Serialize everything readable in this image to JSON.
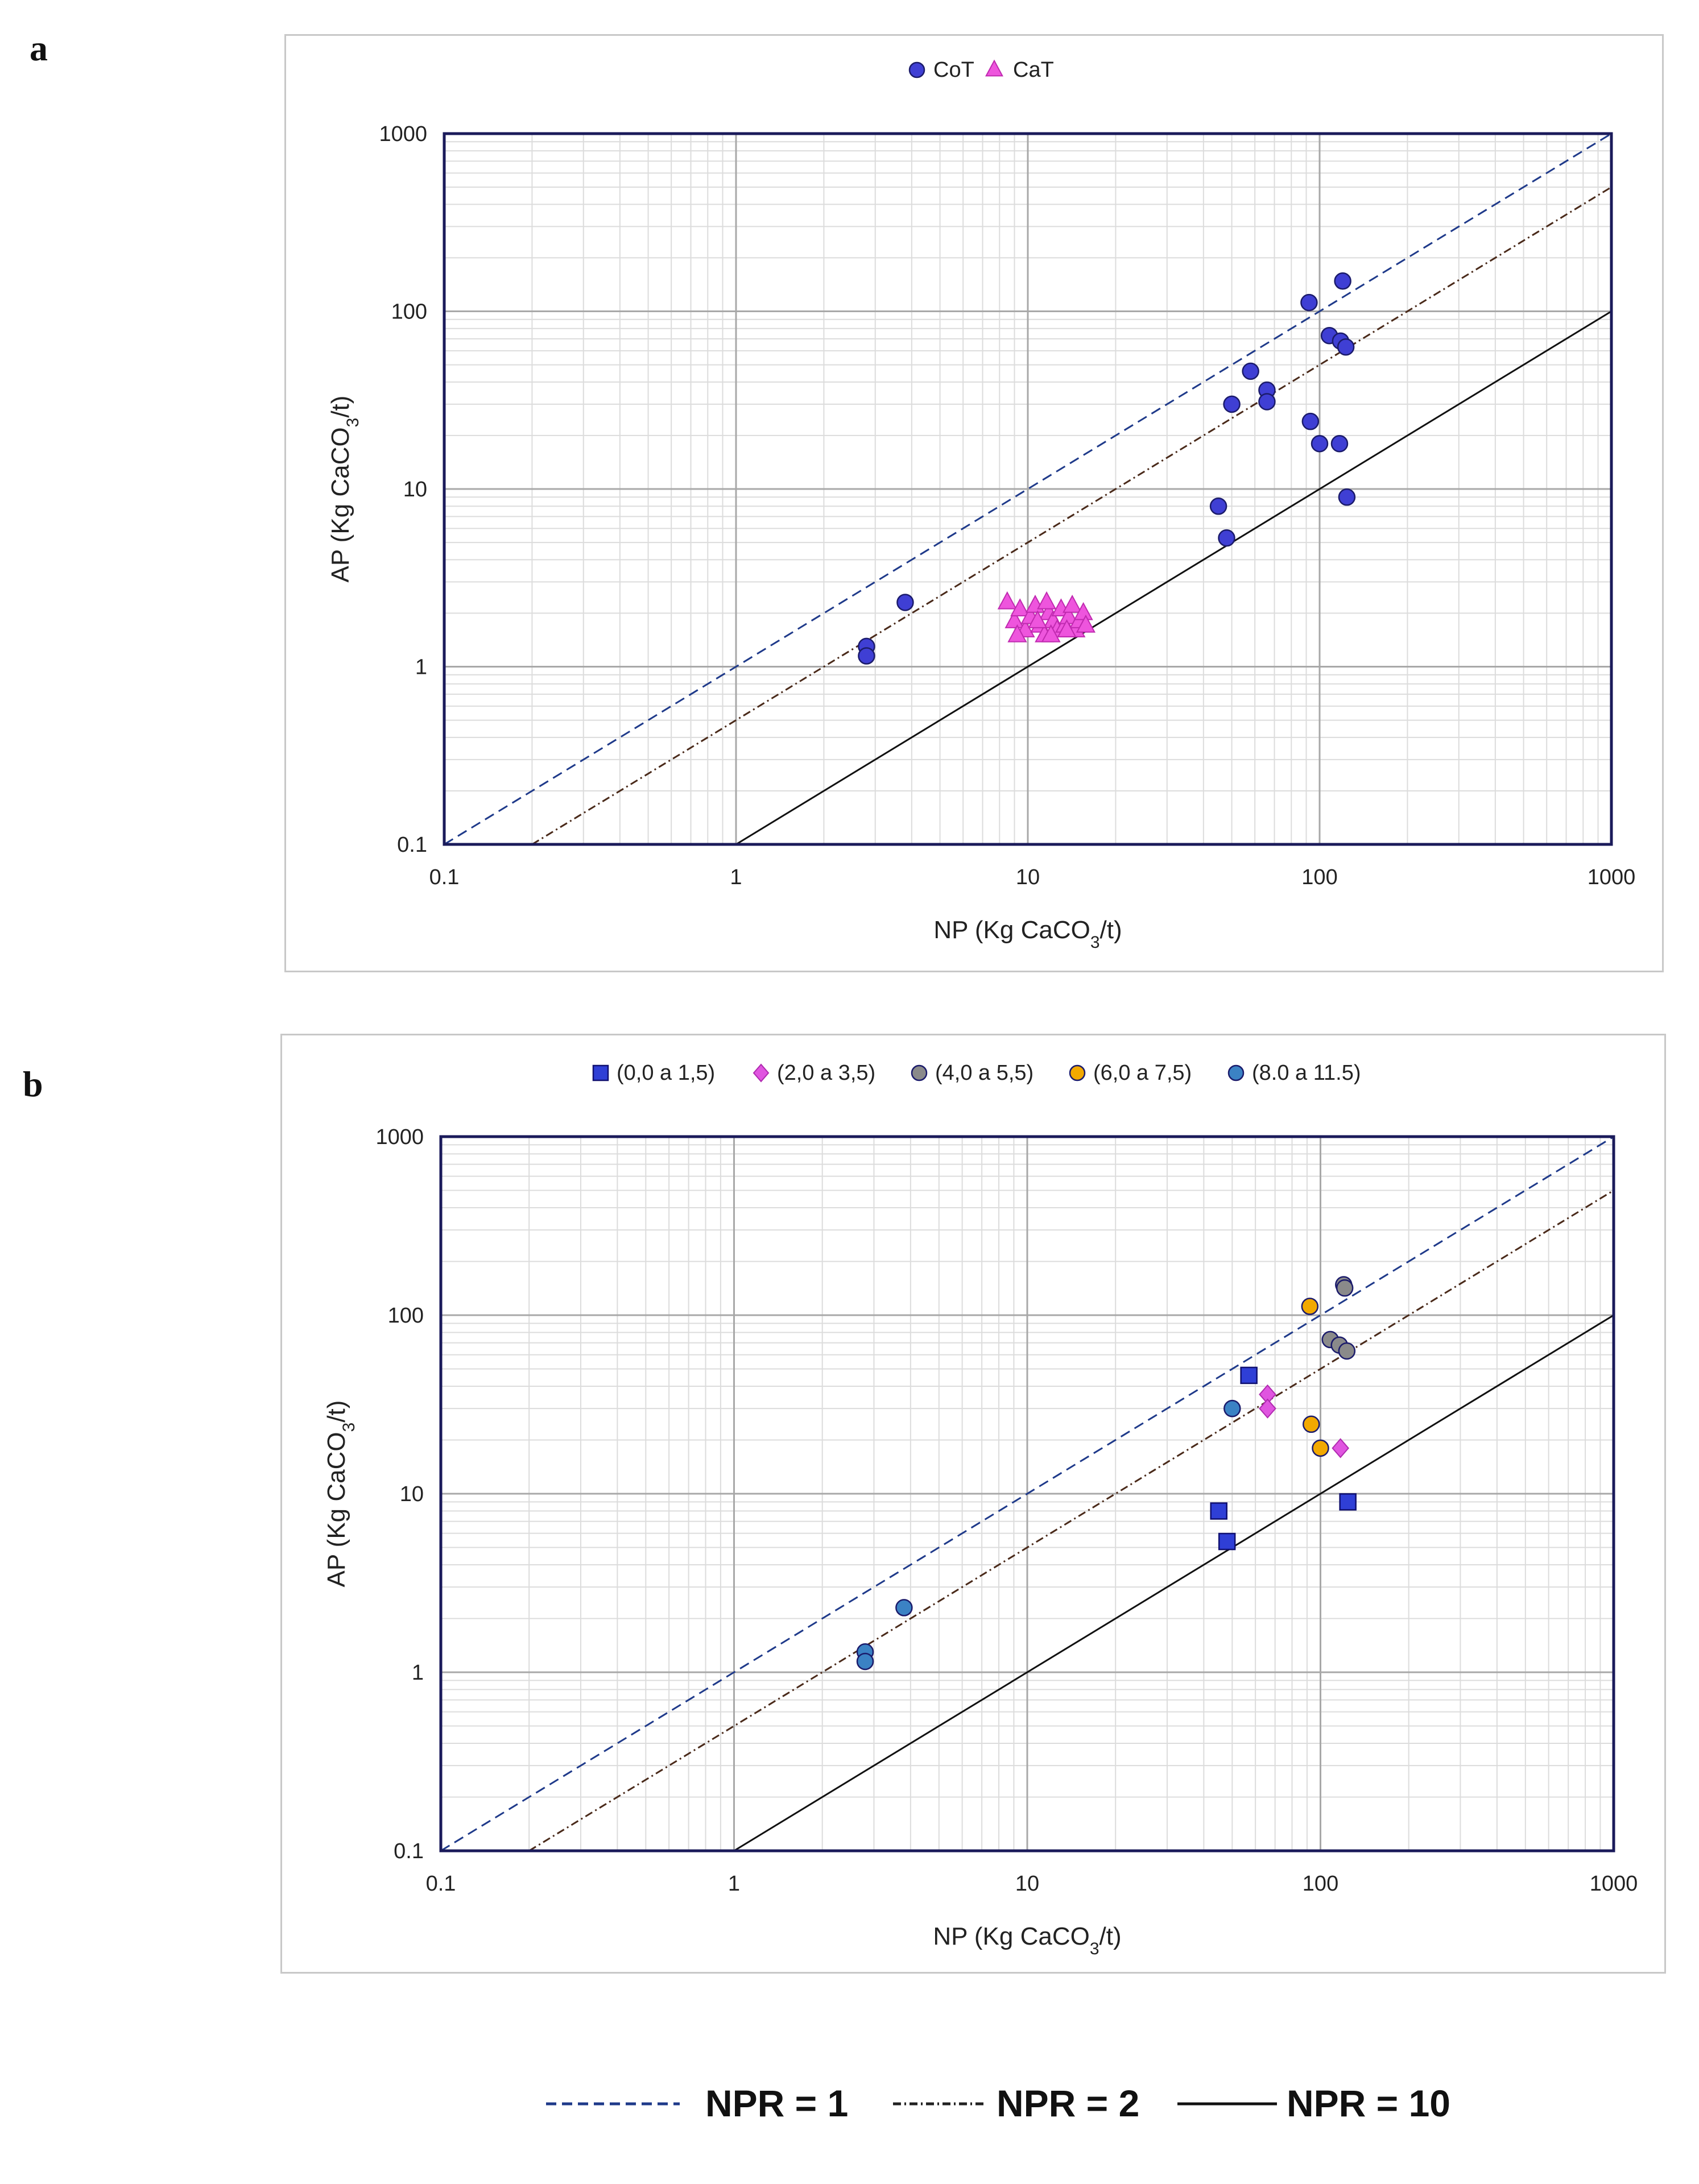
{
  "panels": [
    {
      "letter": "a",
      "legend": [
        {
          "label": "CoT",
          "marker": "circle",
          "color": "#3f3fd4"
        },
        {
          "label": "CaT",
          "marker": "triangle",
          "color": "#ee55dd"
        }
      ],
      "chart_data": {
        "type": "scatter",
        "xscale": "log",
        "yscale": "log",
        "xlim": [
          0.1,
          1000
        ],
        "ylim": [
          0.1,
          1000
        ],
        "xticks": [
          "0.1",
          "1",
          "10",
          "100",
          "1000"
        ],
        "yticks": [
          "0.1",
          "1",
          "10",
          "100",
          "1000"
        ],
        "xlabel_main": "NP (Kg CaCO",
        "xlabel_sub": "3",
        "xlabel_end": "/t)",
        "ylabel_main": "AP (Kg CaCO",
        "ylabel_sub": "3",
        "ylabel_end": "/t)",
        "reference_lines": [
          {
            "name": "NPR = 1",
            "ratio": 1,
            "style": "dashed",
            "color": "#1f3a8a"
          },
          {
            "name": "NPR = 2",
            "ratio": 2,
            "style": "dashdot",
            "color": "#4a2a1a"
          },
          {
            "name": "NPR = 10",
            "ratio": 10,
            "style": "solid",
            "color": "#111111"
          }
        ],
        "series": [
          {
            "name": "CoT",
            "marker": "circle",
            "color": "#3f3fd4",
            "points": [
              [
                2.8,
                1.3
              ],
              [
                2.8,
                1.15
              ],
              [
                3.8,
                2.3
              ],
              [
                45,
                8
              ],
              [
                48,
                5.3
              ],
              [
                50,
                30
              ],
              [
                58,
                46
              ],
              [
                66,
                36
              ],
              [
                66,
                31
              ],
              [
                92,
                112
              ],
              [
                93,
                24
              ],
              [
                100,
                18
              ],
              [
                108,
                73
              ],
              [
                118,
                68
              ],
              [
                120,
                148
              ],
              [
                117,
                18
              ],
              [
                123,
                63
              ],
              [
                124,
                9
              ]
            ]
          },
          {
            "name": "CaT",
            "marker": "triangle",
            "color": "#ee55dd",
            "points": [
              [
                8.5,
                2.3
              ],
              [
                9.0,
                1.8
              ],
              [
                9.4,
                2.1
              ],
              [
                9.8,
                1.6
              ],
              [
                10.2,
                1.9
              ],
              [
                10.6,
                2.2
              ],
              [
                11.0,
                1.7
              ],
              [
                11.4,
                1.5
              ],
              [
                11.8,
                2.0
              ],
              [
                12.2,
                1.8
              ],
              [
                12.6,
                1.6
              ],
              [
                13.0,
                2.1
              ],
              [
                13.4,
                1.7
              ],
              [
                13.8,
                1.9
              ],
              [
                14.2,
                2.2
              ],
              [
                14.6,
                1.6
              ],
              [
                15.0,
                1.8
              ],
              [
                15.5,
                2.0
              ],
              [
                9.2,
                1.5
              ],
              [
                10.8,
                1.8
              ],
              [
                12.0,
                1.5
              ],
              [
                13.6,
                1.6
              ],
              [
                11.6,
                2.3
              ],
              [
                15.8,
                1.7
              ]
            ]
          }
        ]
      }
    },
    {
      "letter": "b",
      "legend": [
        {
          "label": "(0,0 a 1,5)",
          "marker": "square",
          "color": "#2f3fd6"
        },
        {
          "label": "(2,0 a 3,5)",
          "marker": "diamond",
          "color": "#e055e0"
        },
        {
          "label": "(4,0 a 5,5)",
          "marker": "circle",
          "color": "#8a8a8a"
        },
        {
          "label": "(6,0 a 7,5)",
          "marker": "circle",
          "color": "#f2a900"
        },
        {
          "label": "(8.0 a 11.5)",
          "marker": "circle",
          "color": "#3b82c4"
        }
      ],
      "chart_data": {
        "type": "scatter",
        "xscale": "log",
        "yscale": "log",
        "xlim": [
          0.1,
          1000
        ],
        "ylim": [
          0.1,
          1000
        ],
        "xticks": [
          "0.1",
          "1",
          "10",
          "100",
          "1000"
        ],
        "yticks": [
          "0.1",
          "1",
          "10",
          "100",
          "1000"
        ],
        "xlabel_main": "NP (Kg CaCO",
        "xlabel_sub": "3",
        "xlabel_end": "/t)",
        "ylabel_main": "AP (Kg CaCO",
        "ylabel_sub": "3",
        "ylabel_end": "/t)",
        "reference_lines": [
          {
            "name": "NPR = 1",
            "ratio": 1,
            "style": "dashed",
            "color": "#1f3a8a"
          },
          {
            "name": "NPR = 2",
            "ratio": 2,
            "style": "dashdot",
            "color": "#4a2a1a"
          },
          {
            "name": "NPR = 10",
            "ratio": 10,
            "style": "solid",
            "color": "#111111"
          }
        ],
        "series": [
          {
            "name": "(0,0 a 1,5)",
            "marker": "square",
            "color": "#2f3fd6",
            "points": [
              [
                57,
                46
              ],
              [
                45,
                8
              ],
              [
                48,
                5.4
              ],
              [
                124,
                9
              ]
            ]
          },
          {
            "name": "(2,0 a 3,5)",
            "marker": "diamond",
            "color": "#e055e0",
            "points": [
              [
                66,
                36
              ],
              [
                66,
                30
              ],
              [
                117,
                18
              ]
            ]
          },
          {
            "name": "(4,0 a 5,5)",
            "marker": "circle",
            "color": "#8a8a8a",
            "points": [
              [
                120,
                148
              ],
              [
                121,
                142
              ],
              [
                108,
                73
              ],
              [
                116,
                68
              ],
              [
                123,
                63
              ]
            ]
          },
          {
            "name": "(6,0 a 7,5)",
            "marker": "circle",
            "color": "#f2a900",
            "points": [
              [
                92,
                112
              ],
              [
                93,
                24.5
              ],
              [
                100,
                18
              ]
            ]
          },
          {
            "name": "(8.0 a 11.5)",
            "marker": "circle",
            "color": "#3b82c4",
            "points": [
              [
                50,
                30
              ],
              [
                3.8,
                2.3
              ],
              [
                2.8,
                1.3
              ],
              [
                2.8,
                1.15
              ]
            ]
          }
        ]
      }
    }
  ],
  "npr_legend": [
    {
      "label": "NPR = 1",
      "style": "dashed",
      "color": "#1f3a8a"
    },
    {
      "label": "NPR = 2",
      "style": "dashdot",
      "color": "#222222"
    },
    {
      "label": "NPR = 10",
      "style": "solid",
      "color": "#111111"
    }
  ]
}
